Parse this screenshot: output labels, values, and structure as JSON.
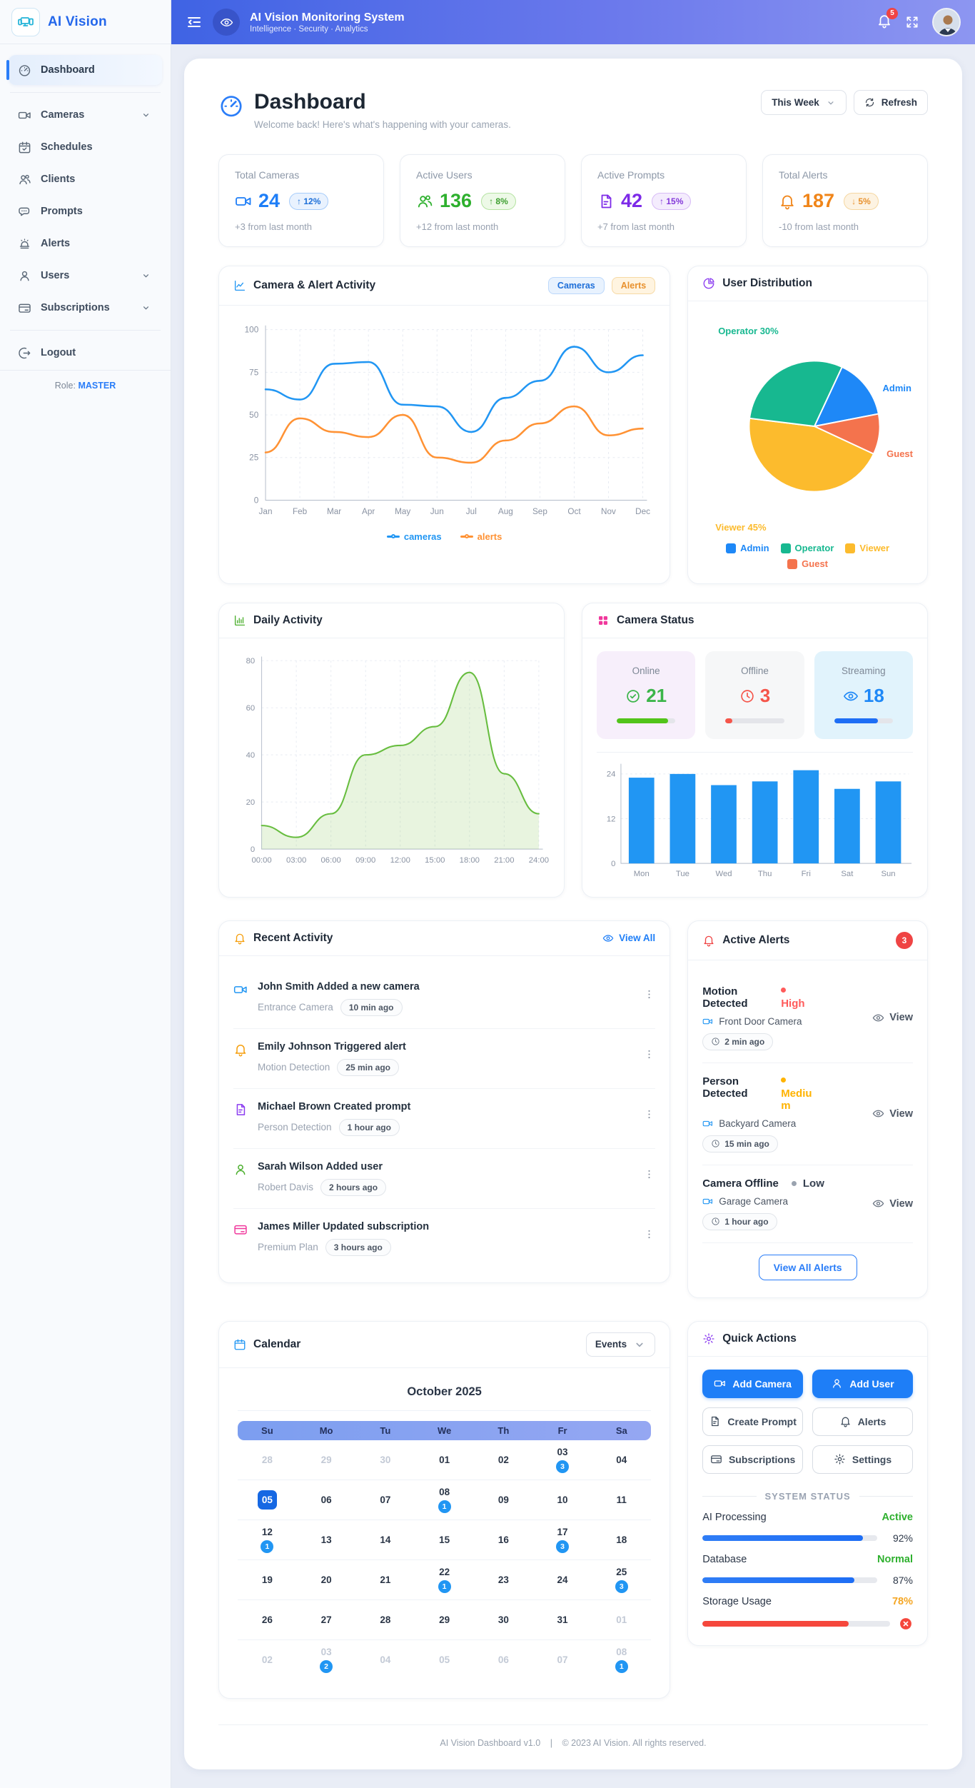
{
  "sidebar": {
    "logo_text": "AI Vision",
    "items": [
      {
        "label": "Dashboard",
        "active": true
      },
      {
        "label": "Cameras",
        "chevron": true
      },
      {
        "label": "Schedules"
      },
      {
        "label": "Clients"
      },
      {
        "label": "Prompts"
      },
      {
        "label": "Alerts"
      },
      {
        "label": "Users",
        "chevron": true
      },
      {
        "label": "Subscriptions",
        "chevron": true
      }
    ],
    "logout_label": "Logout",
    "role_label": "Role:",
    "role_value": "MASTER"
  },
  "header": {
    "title": "AI Vision Monitoring System",
    "subtitle": "Intelligence · Security · Analytics",
    "notification_count": "5"
  },
  "page": {
    "title": "Dashboard",
    "subtitle": "Welcome back! Here's what's happening with your cameras.",
    "period": "This Week",
    "refresh_label": "Refresh"
  },
  "stats": [
    {
      "label": "Total Cameras",
      "value": "24",
      "delta": "↑ 12%",
      "note": "+3 from last month"
    },
    {
      "label": "Active Users",
      "value": "136",
      "delta": "↑ 8%",
      "note": "+12 from last month"
    },
    {
      "label": "Active Prompts",
      "value": "42",
      "delta": "↑ 15%",
      "note": "+7 from last month"
    },
    {
      "label": "Total Alerts",
      "value": "187",
      "delta": "↓ 5%",
      "note": "-10 from last month"
    }
  ],
  "panels": {
    "activity_chart": {
      "title": "Camera & Alert Activity",
      "chips": [
        "Cameras",
        "Alerts"
      ]
    },
    "user_distribution": {
      "title": "User Distribution"
    },
    "daily_activity": {
      "title": "Daily Activity"
    },
    "camera_status": {
      "title": "Camera Status",
      "cards": [
        {
          "label": "Online",
          "value": "21",
          "percent": 87
        },
        {
          "label": "Offline",
          "value": "3",
          "percent": 12
        },
        {
          "label": "Streaming",
          "value": "18",
          "percent": 75
        }
      ]
    },
    "recent_activity": {
      "title": "Recent Activity",
      "view_all": "View All",
      "items": [
        {
          "title": "John Smith Added a new camera",
          "subtitle": "Entrance Camera",
          "time": "10 min ago"
        },
        {
          "title": "Emily Johnson Triggered alert",
          "subtitle": "Motion Detection",
          "time": "25 min ago"
        },
        {
          "title": "Michael Brown Created prompt",
          "subtitle": "Person Detection",
          "time": "1 hour ago"
        },
        {
          "title": "Sarah Wilson Added user",
          "subtitle": "Robert Davis",
          "time": "2 hours ago"
        },
        {
          "title": "James Miller Updated subscription",
          "subtitle": "Premium Plan",
          "time": "3 hours ago"
        }
      ]
    },
    "active_alerts": {
      "title": "Active Alerts",
      "count": "3",
      "view_all": "View All Alerts",
      "items": [
        {
          "title": "Motion Detected",
          "severity": "High",
          "camera": "Front Door Camera",
          "time": "2 min ago",
          "view_label": "View"
        },
        {
          "title": "Person Detected",
          "severity": "Medium",
          "camera": "Backyard Camera",
          "time": "15 min ago",
          "view_label": "View"
        },
        {
          "title": "Camera Offline",
          "severity": "Low",
          "camera": "Garage Camera",
          "time": "1 hour ago",
          "view_label": "View"
        }
      ]
    },
    "calendar": {
      "title": "Calendar",
      "filter": "Events",
      "month": "October 2025",
      "weekdays": [
        "Su",
        "Mo",
        "Tu",
        "We",
        "Th",
        "Fr",
        "Sa"
      ],
      "weeks": [
        [
          {
            "d": "28",
            "muted": true
          },
          {
            "d": "29",
            "muted": true
          },
          {
            "d": "30",
            "muted": true
          },
          {
            "d": "01"
          },
          {
            "d": "02"
          },
          {
            "d": "03",
            "badge": "3"
          },
          {
            "d": "04"
          }
        ],
        [
          {
            "d": "05",
            "selected": true
          },
          {
            "d": "06"
          },
          {
            "d": "07"
          },
          {
            "d": "08",
            "badge": "1"
          },
          {
            "d": "09"
          },
          {
            "d": "10"
          },
          {
            "d": "11"
          }
        ],
        [
          {
            "d": "12",
            "badge": "1"
          },
          {
            "d": "13"
          },
          {
            "d": "14"
          },
          {
            "d": "15"
          },
          {
            "d": "16"
          },
          {
            "d": "17",
            "badge": "3"
          },
          {
            "d": "18"
          }
        ],
        [
          {
            "d": "19"
          },
          {
            "d": "20"
          },
          {
            "d": "21"
          },
          {
            "d": "22",
            "badge": "1"
          },
          {
            "d": "23"
          },
          {
            "d": "24"
          },
          {
            "d": "25",
            "badge": "3"
          }
        ],
        [
          {
            "d": "26"
          },
          {
            "d": "27"
          },
          {
            "d": "28"
          },
          {
            "d": "29"
          },
          {
            "d": "30"
          },
          {
            "d": "31"
          },
          {
            "d": "01",
            "muted": true
          }
        ],
        [
          {
            "d": "02",
            "muted": true
          },
          {
            "d": "03",
            "muted": true,
            "badge": "2"
          },
          {
            "d": "04",
            "muted": true
          },
          {
            "d": "05",
            "muted": true
          },
          {
            "d": "06",
            "muted": true
          },
          {
            "d": "07",
            "muted": true
          },
          {
            "d": "08",
            "muted": true,
            "badge": "1"
          }
        ]
      ]
    },
    "quick_actions": {
      "title": "Quick Actions",
      "buttons": [
        {
          "label": "Add Camera"
        },
        {
          "label": "Add User"
        },
        {
          "label": "Create Prompt"
        },
        {
          "label": "Alerts"
        },
        {
          "label": "Subscriptions"
        },
        {
          "label": "Settings"
        }
      ],
      "system": {
        "heading": "SYSTEM STATUS",
        "rows": [
          {
            "label": "AI Processing",
            "status": "Active",
            "percent": 92,
            "percent_label": "92%"
          },
          {
            "label": "Database",
            "status": "Normal",
            "percent": 87,
            "percent_label": "87%"
          },
          {
            "label": "Storage Usage",
            "status": "78%",
            "percent": 78,
            "percent_label": ""
          }
        ]
      }
    }
  },
  "footer": {
    "left": "AI Vision Dashboard v1.0",
    "sep": "|",
    "right": "© 2023 AI Vision. All rights reserved."
  },
  "chart_data": [
    {
      "type": "line",
      "title": "Camera & Alert Activity",
      "x": [
        "Jan",
        "Feb",
        "Mar",
        "Apr",
        "May",
        "Jun",
        "Jul",
        "Aug",
        "Sep",
        "Oct",
        "Nov",
        "Dec"
      ],
      "series": [
        {
          "name": "cameras",
          "color": "#2196f3",
          "values": [
            65,
            59,
            80,
            81,
            56,
            55,
            40,
            60,
            70,
            90,
            75,
            85
          ]
        },
        {
          "name": "alerts",
          "color": "#ff9234",
          "values": [
            28,
            48,
            40,
            37,
            50,
            25,
            22,
            35,
            45,
            55,
            38,
            42
          ]
        }
      ],
      "ylim": [
        0,
        100
      ],
      "yticks": [
        0,
        25,
        50,
        75,
        100
      ],
      "grid": true,
      "smooth": true,
      "legend_position": "bottom"
    },
    {
      "type": "pie",
      "title": "User Distribution",
      "start_angle": 65,
      "slices": [
        {
          "name": "Admin",
          "value": 15,
          "color": "#1e88f7"
        },
        {
          "name": "Guest",
          "value": 10,
          "color": "#f4734d"
        },
        {
          "name": "Viewer",
          "value": 45,
          "color": "#fcbb2d"
        },
        {
          "name": "Operator",
          "value": 30,
          "color": "#17b890"
        }
      ],
      "labels": [
        {
          "text": "Operator 30%",
          "color": "#17b890",
          "pos": "top-left"
        },
        {
          "text": "Admin",
          "color": "#1e88f7",
          "pos": "right"
        },
        {
          "text": "Guest",
          "color": "#f4734d",
          "pos": "right-bottom"
        },
        {
          "text": "Viewer 45%",
          "color": "#fcbb2d",
          "pos": "bottom-left"
        }
      ],
      "legend": [
        {
          "name": "Admin",
          "color": "#1e88f7"
        },
        {
          "name": "Operator",
          "color": "#17b890"
        },
        {
          "name": "Viewer",
          "color": "#fcbb2d"
        },
        {
          "name": "Guest",
          "color": "#f4734d"
        }
      ]
    },
    {
      "type": "area",
      "title": "Daily Activity",
      "x": [
        "00:00",
        "03:00",
        "06:00",
        "09:00",
        "12:00",
        "15:00",
        "18:00",
        "21:00",
        "24:00"
      ],
      "values": [
        10,
        5,
        15,
        40,
        44,
        52,
        75,
        32,
        15
      ],
      "color": "#67bd3f",
      "fill": "rgba(125,196,80,0.18)",
      "ylim": [
        0,
        80
      ],
      "yticks": [
        0,
        20,
        40,
        60,
        80
      ],
      "grid": true,
      "smooth": true
    },
    {
      "type": "bar",
      "title": "Cameras per Day",
      "categories": [
        "Mon",
        "Tue",
        "Wed",
        "Thu",
        "Fri",
        "Sat",
        "Sun"
      ],
      "values": [
        23,
        24,
        21,
        22,
        25,
        20,
        22
      ],
      "color": "#2196f3",
      "ylim": [
        0,
        26
      ],
      "yticks": [
        0,
        12,
        24
      ],
      "grid": true
    }
  ]
}
